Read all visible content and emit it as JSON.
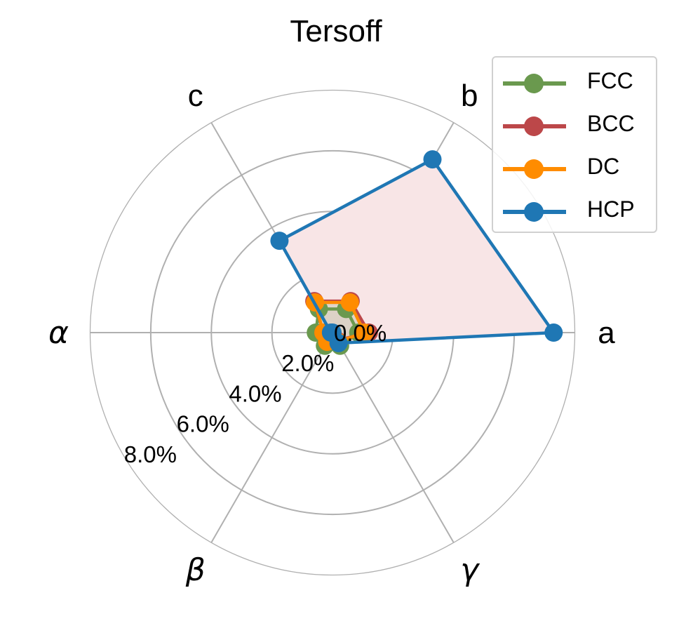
{
  "chart_data": {
    "type": "radar",
    "title": "Tersoff",
    "categories": [
      "a",
      "b",
      "c",
      "α",
      "β",
      "γ"
    ],
    "radial_ticks": [
      "0.0%",
      "2.0%",
      "4.0%",
      "6.0%",
      "8.0%"
    ],
    "radial_tick_values": [
      0,
      2,
      4,
      6,
      8
    ],
    "rlim": [
      0,
      8
    ],
    "grid": true,
    "legend_position": "upper right",
    "unit": "%",
    "series": [
      {
        "name": "FCC",
        "color": "#6a994e",
        "values": [
          0.85,
          0.9,
          0.9,
          0.55,
          0.5,
          0.5
        ]
      },
      {
        "name": "BCC",
        "color": "#bc4749",
        "values": [
          1.2,
          1.2,
          1.2,
          0.3,
          0.3,
          0.3
        ]
      },
      {
        "name": "DC",
        "color": "#ff8c00",
        "values": [
          1.05,
          1.15,
          1.15,
          0.3,
          0.35,
          0.35
        ]
      },
      {
        "name": "HCP",
        "color": "#1f77b4",
        "values": [
          7.3,
          6.6,
          3.5,
          0.05,
          0.0,
          0.4
        ]
      }
    ]
  },
  "legend": {
    "items": [
      {
        "label": "FCC",
        "color": "#6a994e"
      },
      {
        "label": "BCC",
        "color": "#bc4749"
      },
      {
        "label": "DC",
        "color": "#ff8c00"
      },
      {
        "label": "HCP",
        "color": "#1f77b4"
      }
    ]
  },
  "fills": {
    "HCP": "#f8e5e6",
    "small": "#d9cfc3"
  }
}
